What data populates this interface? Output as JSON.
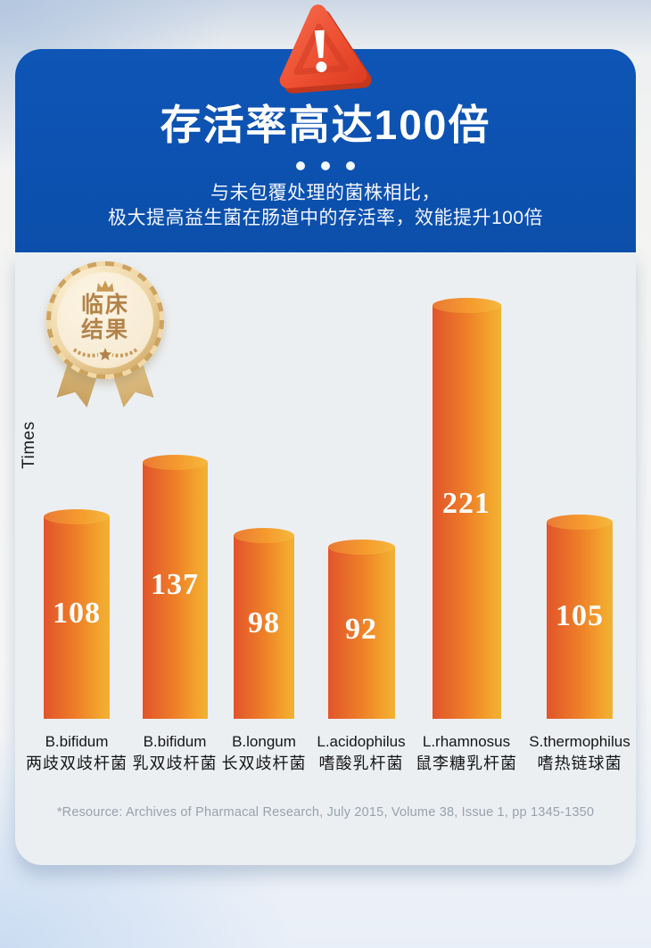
{
  "header": {
    "title": "存活率高达100倍",
    "subtitle_line1": "与未包覆处理的菌株相比，",
    "subtitle_line2": "极大提高益生菌在肠道中的存活率，效能提升100倍",
    "warning_icon": "warning-exclamation-triangle",
    "header_blue": "#0d52b0"
  },
  "badge": {
    "line1": "临床",
    "line2": "结果",
    "crown_icon": "crown-icon",
    "star_icon": "star-icon",
    "gold_color": "#b3834a"
  },
  "chart_data": {
    "type": "bar",
    "title": "存活率高达100倍",
    "ylabel": "Times",
    "grid": false,
    "legend": false,
    "categories_en": [
      "B.bifidum",
      "B.bifidum",
      "B.longum",
      "L.acidophilus",
      "L.rhamnosus",
      "S.thermophilus"
    ],
    "categories_zh": [
      "两歧双歧杆菌",
      "乳双歧杆菌",
      "长双歧杆菌",
      "嗜酸乳杆菌",
      "鼠李糖乳杆菌",
      "嗜热链球菌"
    ],
    "values": [
      108,
      137,
      98,
      92,
      221,
      105
    ],
    "bar_color_gradient": [
      "#e1542b",
      "#ee7d28",
      "#f0b233"
    ],
    "value_label_color": "#ffffff",
    "panel_color": "#eceff2"
  },
  "footer": {
    "resource": "*Resource: Archives of Pharmacal Research, July 2015, Volume 38, Issue 1, pp 1345-1350"
  }
}
